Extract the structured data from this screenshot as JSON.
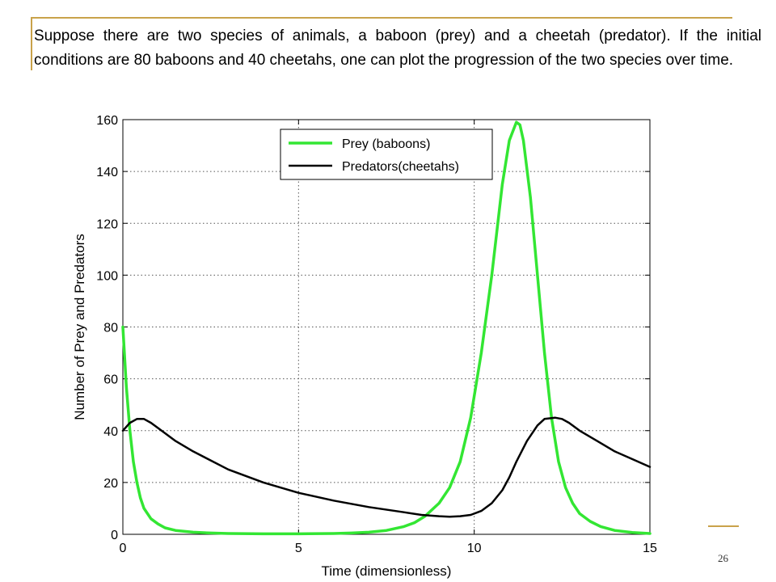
{
  "slide": {
    "text": "Suppose there are two species of animals, a baboon (prey) and a cheetah (predator). If the initial conditions are 80 baboons and 40 cheetahs, one can plot the progression of the two species over time.",
    "page_number": "26"
  },
  "colors": {
    "prey": "#33e633",
    "predator": "#000000",
    "accent": "#c9a24a"
  },
  "chart_data": {
    "type": "line",
    "xlabel": "Time (dimensionless)",
    "ylabel": "Number of Prey and Predators",
    "xlim": [
      0,
      15
    ],
    "ylim": [
      0,
      160
    ],
    "xticks": [
      0,
      5,
      10,
      15
    ],
    "yticks": [
      0,
      20,
      40,
      60,
      80,
      100,
      120,
      140,
      160
    ],
    "grid": true,
    "legend_position": "top",
    "series": [
      {
        "name": "Prey (baboons)",
        "x": [
          0,
          0.1,
          0.2,
          0.3,
          0.4,
          0.5,
          0.6,
          0.8,
          1.0,
          1.2,
          1.5,
          2.0,
          2.5,
          3,
          4,
          5,
          6,
          6.5,
          7,
          7.5,
          8,
          8.3,
          8.6,
          9.0,
          9.3,
          9.6,
          9.9,
          10.2,
          10.5,
          10.8,
          11.0,
          11.2,
          11.3,
          11.4,
          11.6,
          11.8,
          12.0,
          12.2,
          12.4,
          12.6,
          12.8,
          13.0,
          13.3,
          13.6,
          14.0,
          14.5,
          15
        ],
        "y": [
          80,
          57,
          40,
          28,
          20,
          14,
          10,
          6,
          4,
          2.5,
          1.5,
          0.8,
          0.5,
          0.3,
          0.2,
          0.2,
          0.3,
          0.5,
          0.8,
          1.5,
          3,
          4.5,
          7,
          12,
          18,
          28,
          45,
          70,
          100,
          135,
          152,
          159,
          158,
          152,
          130,
          100,
          70,
          45,
          28,
          18,
          12,
          8,
          5,
          3,
          1.5,
          0.7,
          0.3
        ]
      },
      {
        "name": "Predators(cheetahs)",
        "x": [
          0,
          0.2,
          0.4,
          0.6,
          0.8,
          1.0,
          1.5,
          2,
          3,
          4,
          5,
          6,
          7,
          8,
          8.5,
          9,
          9.3,
          9.6,
          9.9,
          10.2,
          10.5,
          10.8,
          11.0,
          11.2,
          11.5,
          11.8,
          12.0,
          12.3,
          12.5,
          12.7,
          13.0,
          13.5,
          14,
          14.5,
          15
        ],
        "y": [
          40,
          43,
          44.5,
          44.5,
          43,
          41,
          36,
          32,
          25,
          20,
          16,
          13,
          10.5,
          8.5,
          7.5,
          7,
          6.8,
          7,
          7.5,
          9,
          12,
          17,
          22,
          28,
          36,
          42,
          44.5,
          45,
          44.5,
          43,
          40,
          36,
          32,
          29,
          26
        ]
      }
    ]
  }
}
